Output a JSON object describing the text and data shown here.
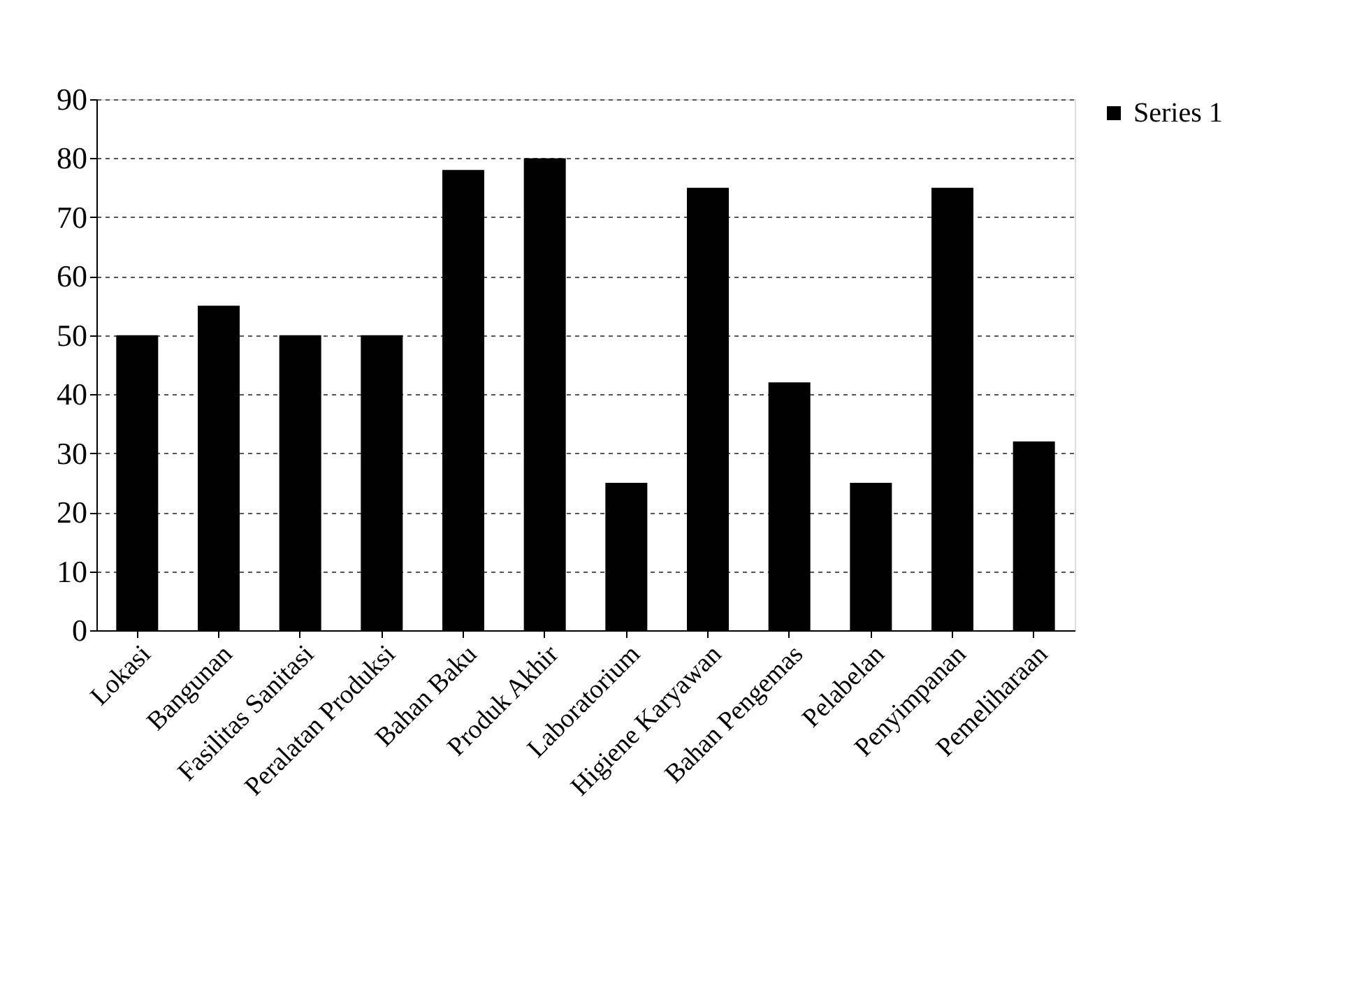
{
  "chart_data": {
    "type": "bar",
    "categories": [
      "Lokasi",
      "Bangunan",
      "Fasilitas Sanitasi",
      "Peralatan Produksi",
      "Bahan Baku",
      "Produk Akhir",
      "Laboratorium",
      "Higiene Karyawan",
      "Bahan Pengemas",
      "Pelabelan",
      "Penyimpanan",
      "Pemeliharaan"
    ],
    "series": [
      {
        "name": "Series 1",
        "color": "#000000",
        "values": [
          50,
          55,
          50,
          50,
          78,
          80,
          25,
          75,
          42,
          25,
          75,
          32
        ]
      }
    ],
    "ylim": [
      0,
      90
    ],
    "yticks": [
      0,
      10,
      20,
      30,
      40,
      50,
      60,
      70,
      80,
      90
    ],
    "grid": "y",
    "legend": "right"
  }
}
